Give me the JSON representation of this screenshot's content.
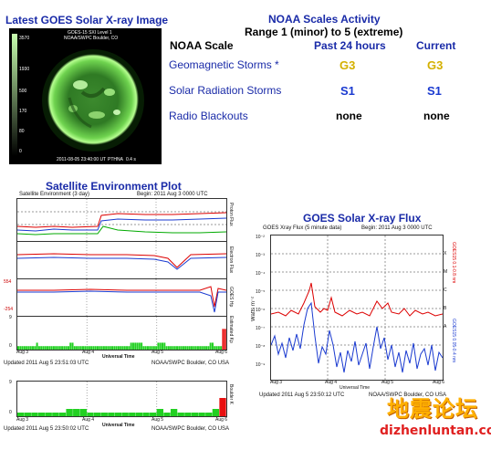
{
  "left_title": "Latest GOES Solar X-ray Image",
  "sun_image": {
    "caption_top1": "GOES-15 SXI Level 1",
    "caption_top2": "NOAA/SWPC Boulder, CO",
    "caption_bottom": "2011-08-05 23:40:00 UT",
    "caption_filter": "PTHNA",
    "caption_exp": "0.4 s",
    "scale_labels": [
      "3570",
      "1930",
      "500",
      "170",
      "80",
      "0"
    ]
  },
  "noaa": {
    "title": "NOAA Scales Activity",
    "subtitle": "Range 1 (minor) to 5 (extreme)",
    "col_scale": "NOAA Scale",
    "col_24h": "Past 24 hours",
    "col_current": "Current",
    "rows": [
      {
        "name": "Geomagnetic Storms *",
        "past": "G3",
        "current": "G3"
      },
      {
        "name": "Solar Radiation Storms",
        "past": "S1",
        "current": "S1"
      },
      {
        "name": "Radio Blackouts",
        "past": "none",
        "current": "none"
      }
    ]
  },
  "satellite": {
    "title": "Satellite Environment Plot",
    "header_left": "Satellite Environment (3 day)",
    "header_right": "Begin:  2011 Aug 3 0000 UTC",
    "panel_labels": [
      "Proton Flux",
      "Electron Flux",
      "GOES Hp",
      "Estimated Kp"
    ],
    "hp_ticks": [
      "554",
      "-254"
    ],
    "kp_ticks": [
      "9",
      "0"
    ],
    "x_ticks": [
      "Aug 3",
      "Aug 4",
      "Aug 5",
      "Aug 6"
    ],
    "x_label": "Universal Time",
    "footer_left": "Updated 2011 Aug  5 23:51:03 UTC",
    "footer_right": "NOAA/SWPC Boulder, CO USA",
    "kp_values": [
      1,
      1,
      1,
      1,
      1,
      1,
      1,
      1,
      1,
      2,
      1,
      1,
      1,
      1,
      1,
      1,
      1,
      1,
      1,
      1,
      1,
      1,
      1,
      1,
      1,
      2,
      2,
      1,
      1,
      1,
      1,
      1,
      1,
      1,
      1,
      1,
      1,
      1,
      1,
      1,
      1,
      1,
      1,
      1,
      1,
      1,
      1,
      1,
      1,
      1,
      1,
      1,
      1,
      1,
      2,
      2,
      2,
      2,
      2,
      2,
      1,
      1,
      1,
      1,
      1,
      1,
      1,
      2,
      2,
      2,
      2,
      1,
      1,
      1,
      1,
      1,
      1,
      1,
      1,
      1,
      1,
      1,
      1,
      1,
      1,
      1,
      1,
      1,
      1,
      1,
      1,
      1,
      2,
      2,
      1,
      1,
      1,
      1,
      6,
      6
    ]
  },
  "boulder": {
    "panel_label": "Boulder K",
    "ticks": [
      "9",
      "0"
    ],
    "x_ticks": [
      "Aug 3",
      "Aug 4",
      "Aug 5",
      "Aug 6"
    ],
    "x_label": "Universal Time",
    "footer_left": "Updated 2011 Aug  5 23:50:02 UTC",
    "footer_right": "NOAA/SWPC Boulder, CO USA",
    "k_values": [
      1,
      1,
      1,
      1,
      1,
      1,
      1,
      2,
      2,
      2,
      1,
      1,
      1,
      1,
      1,
      1,
      1,
      1,
      1,
      1,
      2,
      1,
      2,
      1,
      1,
      1,
      1,
      1,
      2,
      5
    ]
  },
  "xray": {
    "title": "GOES Solar X-ray Flux",
    "header_left": "GOES Xray Flux (5 minute data)",
    "header_right": "Begin:  2011 Aug 3 0000 UTC",
    "y_label": "Watts m⁻²",
    "y_ticks": [
      "10⁻²",
      "10⁻³",
      "10⁻⁴",
      "10⁻⁵",
      "10⁻⁶",
      "10⁻⁷",
      "10⁻⁸",
      "10⁻⁹"
    ],
    "class_labels": [
      "X",
      "M",
      "C",
      "B",
      "A"
    ],
    "right_label_red": "GOES15 0.1-0.8 nm",
    "right_label_blue": "GOES15 0.05-0.4 nm",
    "x_ticks": [
      "Aug 3",
      "Aug 4",
      "Aug 5",
      "Aug 6"
    ],
    "x_label": "Universal Time",
    "footer_left": "Updated 2011 Aug  5 23:50:12 UTC",
    "footer_right": "NOAA/SWPC Boulder, CO USA"
  },
  "watermark": {
    "chinese": "地震论坛",
    "url": "dizhenluntan.com"
  }
}
